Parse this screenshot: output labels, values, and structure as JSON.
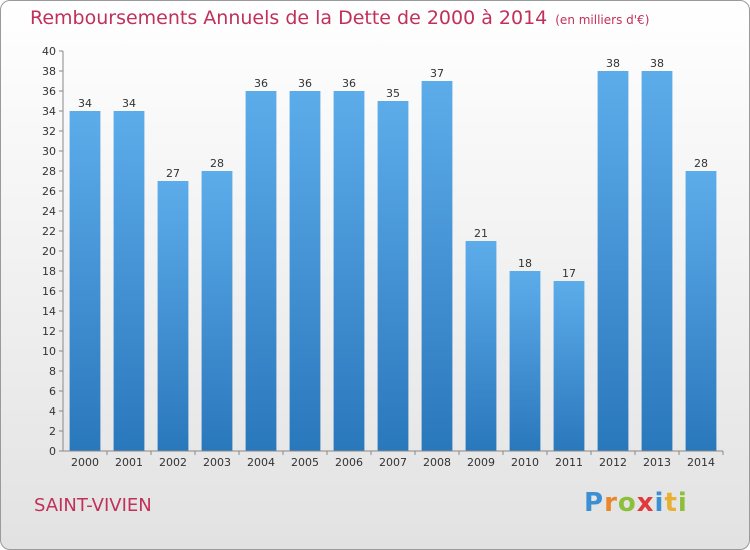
{
  "chart_data": {
    "type": "bar",
    "title": "Remboursements Annuels de la Dette de 2000 à 2014",
    "unit_note": "(en milliers d'€)",
    "categories": [
      "2000",
      "2001",
      "2002",
      "2003",
      "2004",
      "2005",
      "2006",
      "2007",
      "2008",
      "2009",
      "2010",
      "2011",
      "2012",
      "2013",
      "2014"
    ],
    "values": [
      34,
      34,
      27,
      28,
      36,
      36,
      36,
      35,
      37,
      21,
      18,
      17,
      38,
      38,
      28
    ],
    "ylim": [
      0,
      40
    ],
    "yticks": [
      0,
      2,
      4,
      6,
      8,
      10,
      12,
      14,
      16,
      18,
      20,
      22,
      24,
      26,
      28,
      30,
      32,
      34,
      36,
      38,
      40
    ],
    "grid": false,
    "data_labels": true,
    "bar_color_light": "#5dacea",
    "bar_color_dark": "#2a78bc",
    "title_color": "#c0305a"
  },
  "footer": {
    "place": "SAINT-VIVIEN",
    "logo_letters": [
      {
        "ch": "P",
        "color": "#3d8fd4"
      },
      {
        "ch": "r",
        "color": "#e8882a"
      },
      {
        "ch": "o",
        "color": "#8cbf3a"
      },
      {
        "ch": "x",
        "color": "#e03a3a"
      },
      {
        "ch": "i",
        "color": "#3d8fd4"
      },
      {
        "ch": "t",
        "color": "#e8b030"
      },
      {
        "ch": "i",
        "color": "#8cbf3a"
      }
    ]
  }
}
